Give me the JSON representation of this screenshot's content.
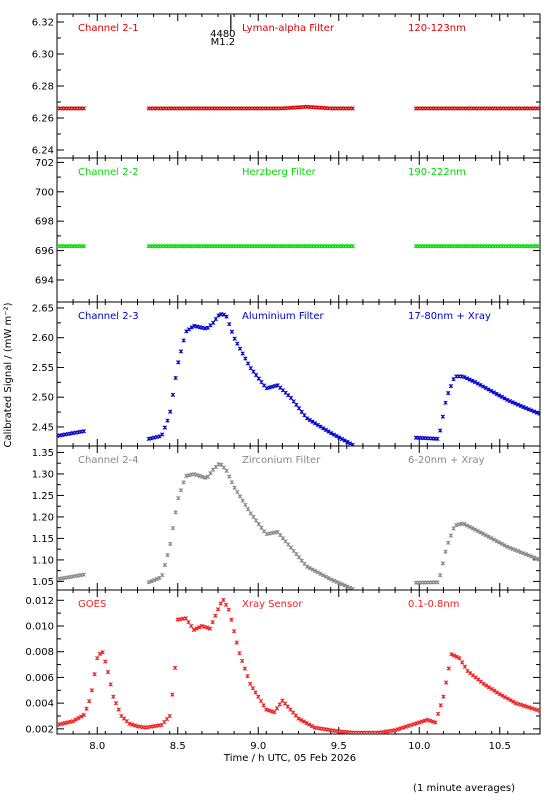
{
  "xlabel": "Time / h UTC, 05 Feb 2026",
  "ylabel": "Calibrated Signal / (mW m⁻²)",
  "footnote": "(1 minute averages)",
  "annotation": {
    "line1": "4480",
    "line2": "M1.2",
    "x": 8.78
  },
  "xlim": [
    7.75,
    10.75
  ],
  "xticks": [
    "8.0",
    "8.5",
    "9.0",
    "9.5",
    "10.0",
    "10.5"
  ],
  "xtick_values": [
    8.0,
    8.5,
    9.0,
    9.5,
    10.0,
    10.5
  ],
  "chart_data": [
    {
      "type": "scatter",
      "channel": "Channel 2-1",
      "filter": "Lyman-alpha Filter",
      "band": "120-123nm",
      "color": "#dd0000",
      "ylim": [
        6.235,
        6.325
      ],
      "yticks": [
        "6.24",
        "6.26",
        "6.28",
        "6.30",
        "6.32"
      ],
      "ytick_values": [
        6.24,
        6.26,
        6.28,
        6.3,
        6.32
      ],
      "segments": [
        [
          7.75,
          7.92
        ],
        [
          8.32,
          9.6
        ],
        [
          9.98,
          10.75
        ]
      ],
      "x": [
        7.75,
        7.9,
        8.32,
        8.6,
        8.8,
        9.0,
        9.15,
        9.3,
        9.45,
        9.6,
        9.98,
        10.2,
        10.4,
        10.6,
        10.75
      ],
      "y": [
        6.266,
        6.266,
        6.266,
        6.266,
        6.266,
        6.266,
        6.266,
        6.267,
        6.266,
        6.266,
        6.266,
        6.266,
        6.266,
        6.266,
        6.266
      ]
    },
    {
      "type": "scatter",
      "channel": "Channel 2-2",
      "filter": "Herzberg Filter",
      "band": "190-222nm",
      "color": "#00dd00",
      "ylim": [
        692.5,
        702.3
      ],
      "yticks": [
        "694",
        "696",
        "698",
        "700",
        "702"
      ],
      "ytick_values": [
        694,
        696,
        698,
        700,
        702
      ],
      "segments": [
        [
          7.75,
          7.92
        ],
        [
          8.32,
          9.6
        ],
        [
          9.98,
          10.75
        ]
      ],
      "x": [
        7.75,
        7.92,
        8.32,
        9.6,
        9.98,
        10.75
      ],
      "y": [
        696.3,
        696.3,
        696.3,
        696.3,
        696.3,
        696.3
      ]
    },
    {
      "type": "scatter",
      "channel": "Channel 2-3",
      "filter": "Aluminium Filter",
      "band": "17-80nm + Xray",
      "color": "#0000cc",
      "ylim": [
        2.418,
        2.66
      ],
      "yticks": [
        "2.45",
        "2.50",
        "2.55",
        "2.60",
        "2.65"
      ],
      "ytick_values": [
        2.45,
        2.5,
        2.55,
        2.6,
        2.65
      ],
      "segments": [
        [
          7.75,
          7.92
        ],
        [
          8.32,
          9.6
        ],
        [
          9.98,
          10.75
        ]
      ],
      "x": [
        7.75,
        7.92,
        8.32,
        8.4,
        8.45,
        8.5,
        8.55,
        8.6,
        8.68,
        8.72,
        8.76,
        8.8,
        8.85,
        8.95,
        9.05,
        9.12,
        9.2,
        9.3,
        9.45,
        9.6,
        9.98,
        10.12,
        10.17,
        10.22,
        10.27,
        10.35,
        10.45,
        10.55,
        10.65,
        10.75
      ],
      "y": [
        2.435,
        2.443,
        2.43,
        2.435,
        2.47,
        2.555,
        2.61,
        2.62,
        2.615,
        2.625,
        2.64,
        2.638,
        2.6,
        2.55,
        2.515,
        2.52,
        2.5,
        2.465,
        2.44,
        2.418,
        2.432,
        2.43,
        2.5,
        2.535,
        2.535,
        2.525,
        2.51,
        2.495,
        2.483,
        2.472
      ]
    },
    {
      "type": "scatter",
      "channel": "Channel 2-4",
      "filter": "Zirconium Filter",
      "band": "6-20nm + Xray",
      "color": "#888888",
      "ylim": [
        1.03,
        1.365
      ],
      "yticks": [
        "1.05",
        "1.10",
        "1.15",
        "1.20",
        "1.25",
        "1.30",
        "1.35"
      ],
      "ytick_values": [
        1.05,
        1.1,
        1.15,
        1.2,
        1.25,
        1.3,
        1.35
      ],
      "segments": [
        [
          7.75,
          7.92
        ],
        [
          8.32,
          9.6
        ],
        [
          9.98,
          10.75
        ]
      ],
      "x": [
        7.75,
        7.92,
        8.32,
        8.4,
        8.45,
        8.5,
        8.55,
        8.6,
        8.68,
        8.72,
        8.76,
        8.8,
        8.85,
        8.95,
        9.05,
        9.12,
        9.2,
        9.3,
        9.45,
        9.6,
        9.98,
        10.12,
        10.17,
        10.22,
        10.27,
        10.35,
        10.45,
        10.55,
        10.65,
        10.75
      ],
      "y": [
        1.055,
        1.066,
        1.048,
        1.06,
        1.13,
        1.24,
        1.295,
        1.3,
        1.29,
        1.31,
        1.325,
        1.31,
        1.27,
        1.21,
        1.16,
        1.165,
        1.13,
        1.085,
        1.055,
        1.03,
        1.047,
        1.048,
        1.13,
        1.18,
        1.185,
        1.17,
        1.15,
        1.13,
        1.115,
        1.1
      ]
    },
    {
      "type": "scatter",
      "channel": "GOES",
      "filter": "Xray Sensor",
      "band": "0.1-0.8nm",
      "color": "#ee2222",
      "ylim": [
        0.0016,
        0.0128
      ],
      "yticks": [
        "0.002",
        "0.004",
        "0.006",
        "0.008",
        "0.010",
        "0.012"
      ],
      "ytick_values": [
        0.002,
        0.004,
        0.006,
        0.008,
        0.01,
        0.012
      ],
      "segments": [
        [
          7.75,
          9.75
        ],
        [
          9.75,
          10.75
        ]
      ],
      "x": [
        7.75,
        7.85,
        7.92,
        7.96,
        8.0,
        8.03,
        8.06,
        8.1,
        8.15,
        8.2,
        8.25,
        8.3,
        8.35,
        8.4,
        8.45,
        8.48,
        8.5,
        8.55,
        8.6,
        8.65,
        8.7,
        8.75,
        8.78,
        8.82,
        8.88,
        8.95,
        9.05,
        9.1,
        9.15,
        9.25,
        9.35,
        9.5,
        9.6,
        9.75,
        9.85,
        9.95,
        10.05,
        10.1,
        10.15,
        10.2,
        10.25,
        10.3,
        10.4,
        10.5,
        10.6,
        10.75
      ],
      "y": [
        0.0023,
        0.0026,
        0.0031,
        0.0045,
        0.0075,
        0.0081,
        0.0068,
        0.0045,
        0.003,
        0.0024,
        0.0022,
        0.0021,
        0.0022,
        0.0023,
        0.003,
        0.006,
        0.0105,
        0.0106,
        0.0097,
        0.01,
        0.0098,
        0.0113,
        0.0121,
        0.0112,
        0.008,
        0.0055,
        0.0035,
        0.0033,
        0.0042,
        0.0028,
        0.0021,
        0.0018,
        0.0017,
        0.0017,
        0.0019,
        0.0023,
        0.0027,
        0.0025,
        0.0045,
        0.0078,
        0.0075,
        0.0065,
        0.0055,
        0.0047,
        0.004,
        0.0034
      ]
    }
  ]
}
